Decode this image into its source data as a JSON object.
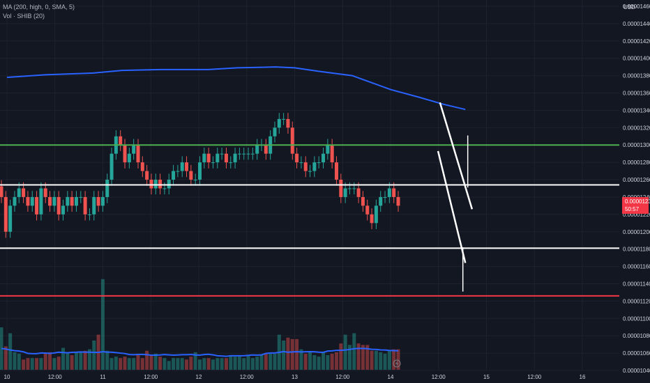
{
  "legend": {
    "ma": "MA (200, high, 0, SMA, 5)",
    "vol": "Vol · SHIB (20)"
  },
  "currency": "USD",
  "price_tag": {
    "value": "0.00001232",
    "countdown": "50:57"
  },
  "colors": {
    "background": "#131722",
    "up": "#26a69a",
    "down": "#ef5350",
    "ma_line": "#2962ff",
    "support_green": "#4caf50",
    "support_red": "#f23645",
    "drawings": "#ffffff"
  },
  "chart_data": {
    "type": "candlestick",
    "y_axis_ticks": [
      "0.00001460",
      "0.00001440",
      "0.00001420",
      "0.00001400",
      "0.00001380",
      "0.00001360",
      "0.00001340",
      "0.00001320",
      "0.00001300",
      "0.00001280",
      "0.00001260",
      "0.00001240",
      "0.00001220",
      "0.00001200",
      "0.00001180",
      "0.00001160",
      "0.00001140",
      "0.00001120",
      "0.00001100",
      "0.00001080",
      "0.00001060",
      "0.00001040"
    ],
    "x_axis_ticks": [
      "10",
      "12:00",
      "11",
      "12:00",
      "12",
      "12:00",
      "13",
      "12:00",
      "14",
      "12:00",
      "15",
      "12:00",
      "16"
    ],
    "ylim": [
      1.036e-05,
      1.464e-05
    ],
    "horizontal_levels": [
      {
        "price": 1.3e-05,
        "color": "green"
      },
      {
        "price": 1.254e-05,
        "color": "white"
      },
      {
        "price": 1.181e-05,
        "color": "white"
      },
      {
        "price": 1.126e-05,
        "color": "red"
      }
    ],
    "channel_lines": [
      {
        "from": {
          "t": 9.03,
          "p": 1.349e-05
        },
        "to": {
          "t": 9.7,
          "p": 1.226e-05
        }
      },
      {
        "from": {
          "t": 8.99,
          "p": 1.293e-05
        },
        "to": {
          "t": 9.56,
          "p": 1.164e-05
        }
      }
    ],
    "measure": {
      "t": 9.61,
      "high": 1.311e-05,
      "low": 1.131e-05
    },
    "ma_series": [
      {
        "t": 0.0,
        "p": 1.378e-05
      },
      {
        "t": 0.8,
        "p": 1.381e-05
      },
      {
        "t": 1.8,
        "p": 1.383e-05
      },
      {
        "t": 2.4,
        "p": 1.386e-05
      },
      {
        "t": 3.2,
        "p": 1.387e-05
      },
      {
        "t": 4.2,
        "p": 1.387e-05
      },
      {
        "t": 4.8,
        "p": 1.389e-05
      },
      {
        "t": 5.6,
        "p": 1.39e-05
      },
      {
        "t": 6.0,
        "p": 1.389e-05
      },
      {
        "t": 6.5,
        "p": 1.385e-05
      },
      {
        "t": 7.2,
        "p": 1.38e-05
      },
      {
        "t": 7.6,
        "p": 1.372e-05
      },
      {
        "t": 8.0,
        "p": 1.364e-05
      },
      {
        "t": 8.6,
        "p": 1.355e-05
      },
      {
        "t": 9.1,
        "p": 1.347e-05
      },
      {
        "t": 9.56,
        "p": 1.341e-05
      }
    ],
    "closes": [
      1.24e-05,
      1.2e-05,
      1.23e-05,
      1.24e-05,
      1.25e-05,
      1.24e-05,
      1.23e-05,
      1.24e-05,
      1.22e-05,
      1.25e-05,
      1.24e-05,
      1.23e-05,
      1.24e-05,
      1.22e-05,
      1.23e-05,
      1.24e-05,
      1.23e-05,
      1.24e-05,
      1.24e-05,
      1.22e-05,
      1.22e-05,
      1.24e-05,
      1.23e-05,
      1.24e-05,
      1.26e-05,
      1.29e-05,
      1.31e-05,
      1.3e-05,
      1.28e-05,
      1.29e-05,
      1.3e-05,
      1.28e-05,
      1.27e-05,
      1.26e-05,
      1.25e-05,
      1.26e-05,
      1.25e-05,
      1.25e-05,
      1.26e-05,
      1.27e-05,
      1.27e-05,
      1.28e-05,
      1.27e-05,
      1.26e-05,
      1.26e-05,
      1.28e-05,
      1.29e-05,
      1.28e-05,
      1.28e-05,
      1.29e-05,
      1.29e-05,
      1.28e-05,
      1.28e-05,
      1.29e-05,
      1.29e-05,
      1.29e-05,
      1.29e-05,
      1.29e-05,
      1.3e-05,
      1.3e-05,
      1.29e-05,
      1.31e-05,
      1.32e-05,
      1.33e-05,
      1.33e-05,
      1.32e-05,
      1.29e-05,
      1.28e-05,
      1.28e-05,
      1.27e-05,
      1.27e-05,
      1.28e-05,
      1.28e-05,
      1.29e-05,
      1.3e-05,
      1.28e-05,
      1.26e-05,
      1.24e-05,
      1.25e-05,
      1.25e-05,
      1.25e-05,
      1.24e-05,
      1.23e-05,
      1.22e-05,
      1.21e-05,
      1.23e-05,
      1.24e-05,
      1.24e-05,
      1.25e-05,
      1.24e-05,
      1.23e-05
    ],
    "volumes": [
      29,
      16,
      25,
      12,
      11,
      7,
      8,
      8,
      8,
      8,
      11,
      12,
      8,
      9,
      15,
      12,
      10,
      12,
      12,
      13,
      14,
      20,
      24,
      62,
      13,
      8,
      9,
      8,
      9,
      8,
      8,
      10,
      8,
      13,
      10,
      11,
      9,
      8,
      6,
      8,
      8,
      8,
      7,
      9,
      12,
      7,
      8,
      8,
      7,
      8,
      8,
      8,
      10,
      9,
      10,
      8,
      10,
      8,
      9,
      10,
      11,
      11,
      11,
      24,
      20,
      22,
      21,
      21,
      14,
      11,
      12,
      10,
      9,
      12,
      10,
      11,
      12,
      18,
      24,
      17,
      25,
      18,
      17,
      17,
      13,
      13,
      12,
      11,
      13,
      14,
      14
    ],
    "vol_ma": [
      14.5,
      14.2,
      13.5,
      13.1,
      12.8,
      12.3,
      11.2,
      11.0,
      11.0,
      11.5,
      11.4,
      11.2,
      11.5,
      12.0,
      11.8,
      11.6,
      11.9,
      12.0,
      12.2,
      12.1,
      12.0,
      11.9,
      11.9,
      12.4,
      12.1,
      12.0,
      11.7,
      11.4,
      11.1,
      10.4,
      10.3,
      10.5,
      10.5,
      10.3,
      10.0,
      10.0,
      10.1,
      10.4,
      10.2,
      10.0,
      10.1,
      10.3,
      10.3,
      10.5,
      10.1,
      10.0,
      10.4,
      10.6,
      10.2,
      9.6,
      9.4,
      9.2,
      9.6,
      9.6,
      9.6,
      9.6,
      9.9,
      10.1,
      10.0,
      10.2,
      11.2,
      11.5,
      11.5,
      11.9,
      12.5,
      12.0,
      12.2,
      12.4,
      12.2,
      12.3,
      12.4,
      12.3,
      12.0,
      11.9,
      12.8,
      12.9,
      13.3,
      13.3,
      13.5,
      13.9,
      14.4,
      14.6,
      14.6,
      14.4,
      14.0,
      13.9,
      13.6,
      13.5,
      13.2,
      13.1,
      13.0
    ]
  }
}
